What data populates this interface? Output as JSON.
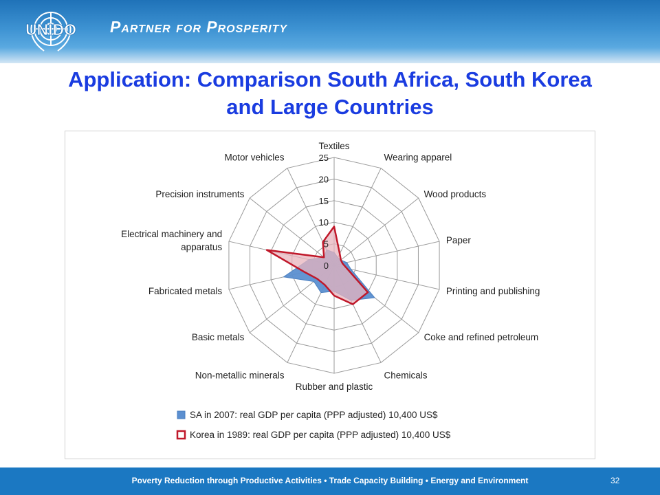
{
  "header": {
    "logo_text": "UNIDO",
    "tagline": "Partner for Prosperity",
    "colors": {
      "banner": "#1f72b8",
      "title": "#1a3ce0"
    }
  },
  "slide": {
    "title_line1": "Application: Comparison South Africa, South Korea",
    "title_line2": "and Large Countries"
  },
  "chart_data": {
    "type": "radar",
    "axes": [
      "Textiles",
      "Wearing apparel",
      "Wood products",
      "Paper",
      "Printing and publishing",
      "Coke and refined petroleum",
      "Chemicals",
      "Rubber and plastic",
      "Non-metallic minerals",
      "Basic metals",
      "Fabricated metals",
      "Electrical machinery and apparatus",
      "Precision instruments",
      "Motor vehicles"
    ],
    "axis_label_lines": [
      [
        "Textiles"
      ],
      [
        "Wearing apparel"
      ],
      [
        "Wood products"
      ],
      [
        "Paper"
      ],
      [
        "Printing and publishing"
      ],
      [
        "Coke and refined petroleum"
      ],
      [
        "Chemicals"
      ],
      [
        "Rubber and plastic"
      ],
      [
        "Non-metallic minerals"
      ],
      [
        "Basic metals"
      ],
      [
        "Fabricated metals"
      ],
      [
        "Electrical machinery and",
        "apparatus"
      ],
      [
        "Precision instruments"
      ],
      [
        "Motor vehicles"
      ]
    ],
    "ticks": [
      0,
      5,
      10,
      15,
      20,
      25
    ],
    "rmax": 25,
    "series": [
      {
        "name": "SA in 2007: real GDP per capita (PPP adjusted) 10,400 US$",
        "values": [
          3,
          2,
          2,
          3,
          4,
          12,
          9,
          6,
          7,
          6,
          12,
          6,
          3,
          4
        ],
        "fill": "#5b8fd0",
        "stroke": "#4a7fc0"
      },
      {
        "name": "Korea in 1989: real GDP per capita (PPP adjusted) 10,400 US$",
        "values": [
          9,
          3,
          2,
          2,
          3,
          10,
          10,
          7,
          5,
          5,
          7,
          16,
          3,
          6
        ],
        "fill": "#e8b4bd",
        "stroke": "#c0182a"
      }
    ],
    "legend_position": "bottom",
    "grid": true
  },
  "footer": {
    "text": "Poverty Reduction through Productive Activities  •  Trade Capacity Building  •  Energy and Environment",
    "page_number": "32"
  }
}
